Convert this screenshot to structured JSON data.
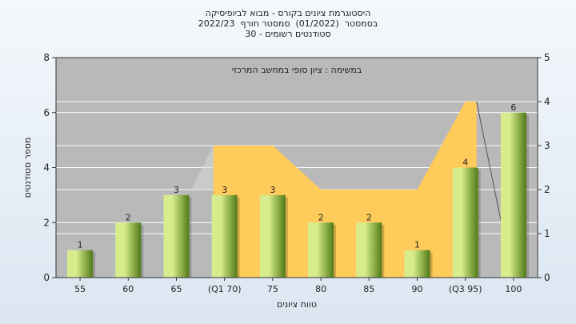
{
  "title": {
    "line1": "היסטוגרמת ציונים בקורס - מבוא לביופיסיקה",
    "line2": "בסמסטר  (01/2022)  סמסטר חורף  2022/23",
    "line3": "סטודנטים רשומים - 30"
  },
  "colors": {
    "plot_bg": "#b9b9b9",
    "grid": "#ffffff",
    "bar_light": "#d7ec8c",
    "bar_dark": "#4f7a16",
    "band": "#ffcb5a",
    "axis": "#333333"
  },
  "chart_data": {
    "type": "bar",
    "title": "היסטוגרמת ציונים בקורס - מבוא לביופיסיקה",
    "annotation": "במשימה : ציון סופי במחשב המרכזי",
    "xlabel": "טווח ציונים",
    "ylabel": "מספר סטודנטים",
    "categories": [
      "55",
      "60",
      "65",
      "(Q1 70)",
      "75",
      "80",
      "85",
      "90",
      "(Q3 95)",
      "100"
    ],
    "values": [
      1,
      2,
      3,
      3,
      3,
      2,
      2,
      1,
      4,
      6
    ],
    "ylim": [
      0,
      8
    ],
    "yticks": [
      0,
      2,
      4,
      6,
      8
    ],
    "y2lim": [
      0,
      5
    ],
    "y2ticks": [
      0,
      1,
      2,
      3,
      4,
      5
    ],
    "band_right_axis": [
      {
        "category": "(Q1 70)",
        "value": 3
      },
      {
        "category": "75",
        "value": 3
      },
      {
        "category": "80",
        "value": 2
      },
      {
        "category": "85",
        "value": 2
      },
      {
        "category": "90",
        "value": 2
      },
      {
        "category": "(Q3 95)",
        "value": 4
      }
    ],
    "grid": true,
    "legend": "none"
  }
}
